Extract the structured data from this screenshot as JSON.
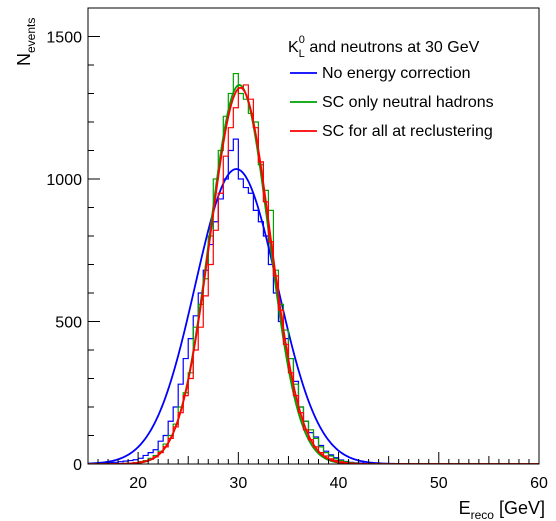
{
  "chart_data": {
    "type": "line",
    "title": "",
    "xlabel": {
      "main": "E",
      "sub": "reco",
      "unit": " [GeV]"
    },
    "ylabel": {
      "main": "N",
      "sub": "events"
    },
    "xlim": [
      15,
      60
    ],
    "ylim": [
      0,
      1600
    ],
    "x_ticks": [
      20,
      30,
      40,
      50,
      60
    ],
    "y_ticks": [
      0,
      500,
      1000,
      1500
    ],
    "grid": false,
    "legend_position": "top-right",
    "legend_header": {
      "prefix": "K",
      "sub": "L",
      "sup": "0",
      "suffix": " and neutrons at 30 GeV"
    },
    "series": [
      {
        "name": "No energy correction",
        "color": "#0000ff",
        "histogram": {
          "edges": [
            15,
            15.5,
            16,
            16.5,
            17,
            17.5,
            18,
            18.5,
            19,
            19.5,
            20,
            20.5,
            21,
            21.5,
            22,
            22.5,
            23,
            23.5,
            24,
            24.5,
            25,
            25.5,
            26,
            26.5,
            27,
            27.5,
            28,
            28.5,
            29,
            29.5,
            30,
            30.5,
            31,
            31.5,
            32,
            32.5,
            33,
            33.5,
            34,
            34.5,
            35,
            35.5,
            36,
            36.5,
            37,
            37.5,
            38,
            38.5,
            39,
            39.5,
            40,
            40.5,
            41,
            41.5,
            42,
            42.5,
            43,
            43.5,
            44,
            44.5,
            45
          ],
          "counts": [
            2,
            3,
            3,
            4,
            5,
            6,
            8,
            10,
            12,
            15,
            20,
            30,
            40,
            50,
            80,
            100,
            150,
            200,
            280,
            370,
            440,
            520,
            600,
            680,
            770,
            850,
            930,
            1000,
            1100,
            1140,
            1000,
            970,
            950,
            890,
            850,
            800,
            700,
            600,
            500,
            440,
            370,
            290,
            200,
            150,
            110,
            95,
            65,
            45,
            32,
            22,
            14,
            9,
            6,
            4,
            3,
            2,
            1,
            1,
            0,
            0
          ]
        },
        "fit": {
          "mean": 29.8,
          "sigma": 4.1,
          "amplitude": 1035
        }
      },
      {
        "name": "SC only neutral hadrons",
        "color": "#00a000",
        "histogram": {
          "edges": [
            18,
            18.5,
            19,
            19.5,
            20,
            20.5,
            21,
            21.5,
            22,
            22.5,
            23,
            23.5,
            24,
            24.5,
            25,
            25.5,
            26,
            26.5,
            27,
            27.5,
            28,
            28.5,
            29,
            29.5,
            30,
            30.5,
            31,
            31.5,
            32,
            32.5,
            33,
            33.5,
            34,
            34.5,
            35,
            35.5,
            36,
            36.5,
            37,
            37.5,
            38,
            38.5,
            39,
            39.5,
            40,
            40.5,
            41,
            41.5,
            42
          ],
          "counts": [
            1,
            2,
            3,
            5,
            8,
            12,
            20,
            30,
            45,
            70,
            100,
            140,
            200,
            250,
            320,
            480,
            560,
            650,
            800,
            1000,
            1100,
            1220,
            1300,
            1370,
            1300,
            1280,
            1230,
            1200,
            1050,
            960,
            890,
            680,
            560,
            470,
            370,
            280,
            200,
            150,
            120,
            90,
            60,
            40,
            28,
            18,
            12,
            8,
            5,
            3
          ]
        },
        "fit": {
          "mean": 30.1,
          "sigma": 2.95,
          "amplitude": 1330
        }
      },
      {
        "name": "SC for all at reclustering",
        "color": "#ff0000",
        "histogram": {
          "edges": [
            18,
            18.5,
            19,
            19.5,
            20,
            20.5,
            21,
            21.5,
            22,
            22.5,
            23,
            23.5,
            24,
            24.5,
            25,
            25.5,
            26,
            26.5,
            27,
            27.5,
            28,
            28.5,
            29,
            29.5,
            30,
            30.5,
            31,
            31.5,
            32,
            32.5,
            33,
            33.5,
            34,
            34.5,
            35,
            35.5,
            36,
            36.5,
            37,
            37.5,
            38,
            38.5,
            39,
            39.5,
            40,
            40.5,
            41,
            41.5,
            42
          ],
          "counts": [
            1,
            2,
            3,
            4,
            7,
            10,
            16,
            25,
            40,
            60,
            90,
            130,
            180,
            240,
            300,
            400,
            480,
            590,
            700,
            820,
            950,
            1080,
            1180,
            1250,
            1320,
            1330,
            1280,
            1180,
            1060,
            920,
            780,
            660,
            540,
            420,
            320,
            240,
            180,
            120,
            85,
            60,
            40,
            28,
            18,
            12,
            8,
            5,
            3,
            2
          ]
        },
        "fit": {
          "mean": 30.2,
          "sigma": 3.0,
          "amplitude": 1320
        }
      }
    ]
  }
}
